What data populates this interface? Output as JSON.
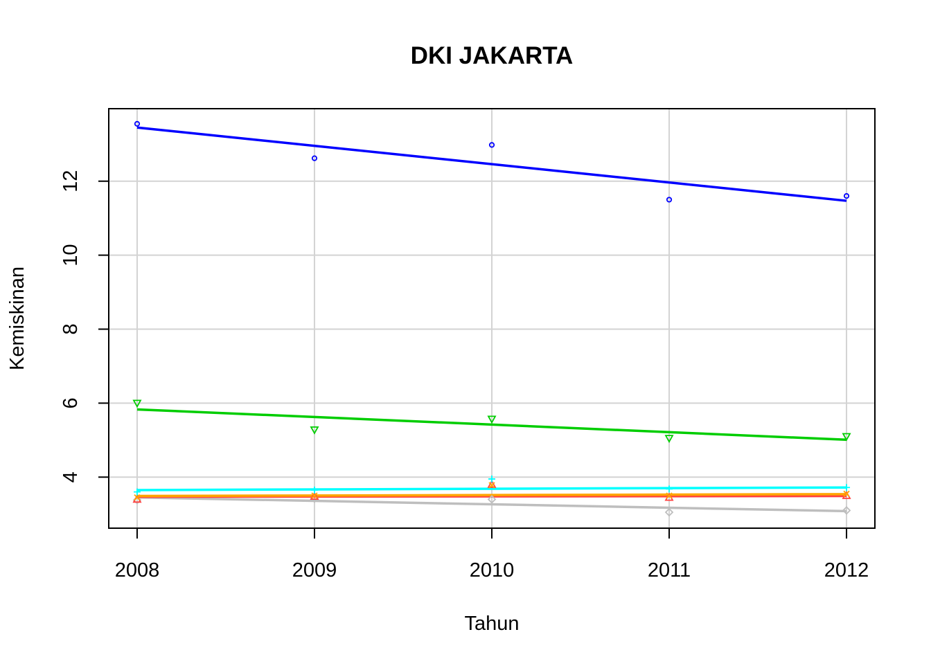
{
  "chart_data": {
    "type": "scatter",
    "title": "DKI JAKARTA",
    "xlabel": "Tahun",
    "ylabel": "Kemiskinan",
    "x": [
      2008,
      2009,
      2010,
      2011,
      2012
    ],
    "x_ticks": [
      "2008",
      "2009",
      "2010",
      "2011",
      "2012"
    ],
    "y_ticks": [
      "4",
      "6",
      "8",
      "10",
      "12"
    ],
    "xlim": [
      2007.84,
      2012.16
    ],
    "ylim": [
      2.62,
      13.96
    ],
    "grid": true,
    "legend": "none",
    "series": [
      {
        "color": "#0000FF",
        "marker": "circle",
        "values": [
          13.55,
          12.62,
          12.98,
          11.5,
          11.6
        ],
        "trend": [
          13.45,
          11.47
        ]
      },
      {
        "color": "#00CD00",
        "marker": "triangle-down",
        "values": [
          6.0,
          5.28,
          5.57,
          5.05,
          5.1
        ],
        "trend": [
          5.83,
          5.01
        ]
      },
      {
        "color": "#00FFFF",
        "marker": "plus",
        "values": [
          3.6,
          3.65,
          3.95,
          3.68,
          3.72
        ],
        "trend": [
          3.65,
          3.72
        ]
      },
      {
        "color": "#FFA500",
        "marker": "x",
        "values": [
          3.45,
          3.5,
          3.78,
          3.5,
          3.55
        ],
        "trend": [
          3.49,
          3.54
        ]
      },
      {
        "color": "#FF4040",
        "marker": "triangle-up",
        "values": [
          3.4,
          3.48,
          3.8,
          3.45,
          3.5
        ],
        "trend": [
          3.47,
          3.49
        ]
      },
      {
        "color": "#BEBEBE",
        "marker": "diamond",
        "values": [
          3.38,
          3.42,
          3.4,
          3.05,
          3.1
        ],
        "trend": [
          3.45,
          3.08
        ]
      }
    ]
  }
}
